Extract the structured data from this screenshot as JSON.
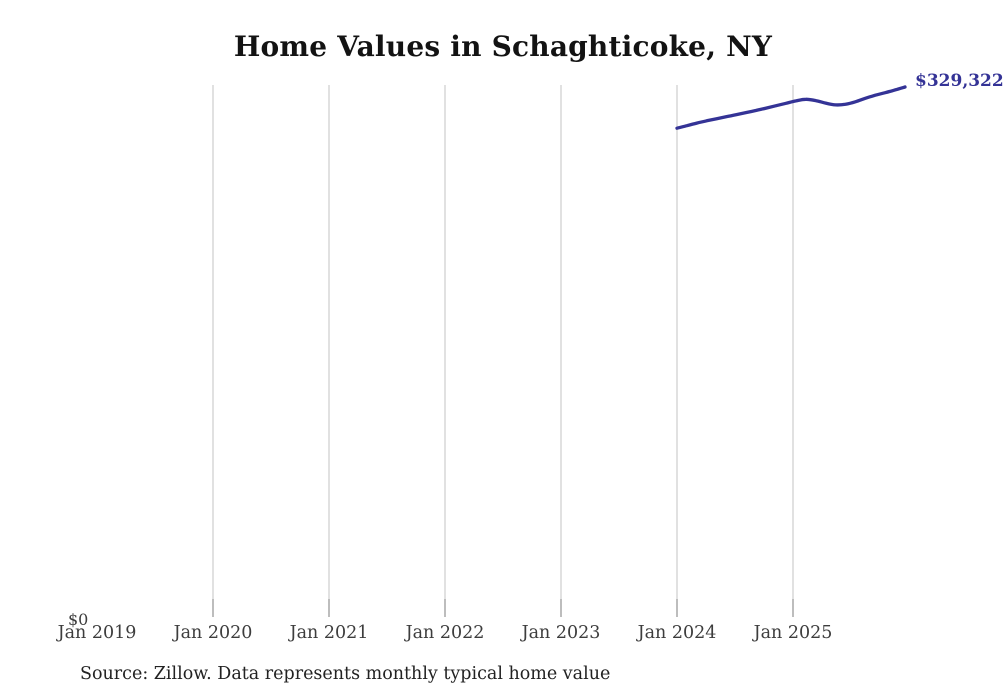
{
  "chart": {
    "colors": {
      "line": "#343396",
      "gridline": "#cdcdcd",
      "tick": "#919191",
      "title_text": "#131313",
      "axis_label_text": "#3d3d3d",
      "source_text": "#222222",
      "background": "#ffffff"
    }
  },
  "chart_data": {
    "type": "line",
    "title": "Home Values in Schaghticoke, NY",
    "xlabel": "",
    "ylabel": "",
    "x_tick_labels": [
      "Jan 2019",
      "Jan 2020",
      "Jan 2021",
      "Jan 2022",
      "Jan 2023",
      "Jan 2024",
      "Jan 2025"
    ],
    "y_tick_labels": [
      "$0"
    ],
    "ylim": [
      0,
      331000
    ],
    "grid": "vertical gridlines only (Jan 2020 through Jan 2025); no gridline at Jan 2019; no horizontal gridlines; no axis spines",
    "legend": "none",
    "series": [
      {
        "name": "Typical home value",
        "x": [
          "2024-01",
          "2024-02",
          "2024-03",
          "2024-04",
          "2024-05",
          "2024-06",
          "2024-07",
          "2024-08",
          "2024-09",
          "2024-10",
          "2024-11",
          "2024-12",
          "2025-01",
          "2025-02",
          "2025-03",
          "2025-04",
          "2025-05",
          "2025-06",
          "2025-07",
          "2025-08",
          "2025-09",
          "2025-10",
          "2025-11",
          "2025-12"
        ],
        "values": [
          303700,
          305300,
          306900,
          308300,
          309600,
          310900,
          312200,
          313500,
          314800,
          316200,
          317700,
          319200,
          320700,
          321700,
          320900,
          319300,
          318200,
          318600,
          320100,
          322300,
          324200,
          325800,
          327500,
          329322
        ]
      }
    ],
    "last_point_label": "$329,322",
    "source_note": "Source: Zillow. Data represents monthly typical home value"
  }
}
